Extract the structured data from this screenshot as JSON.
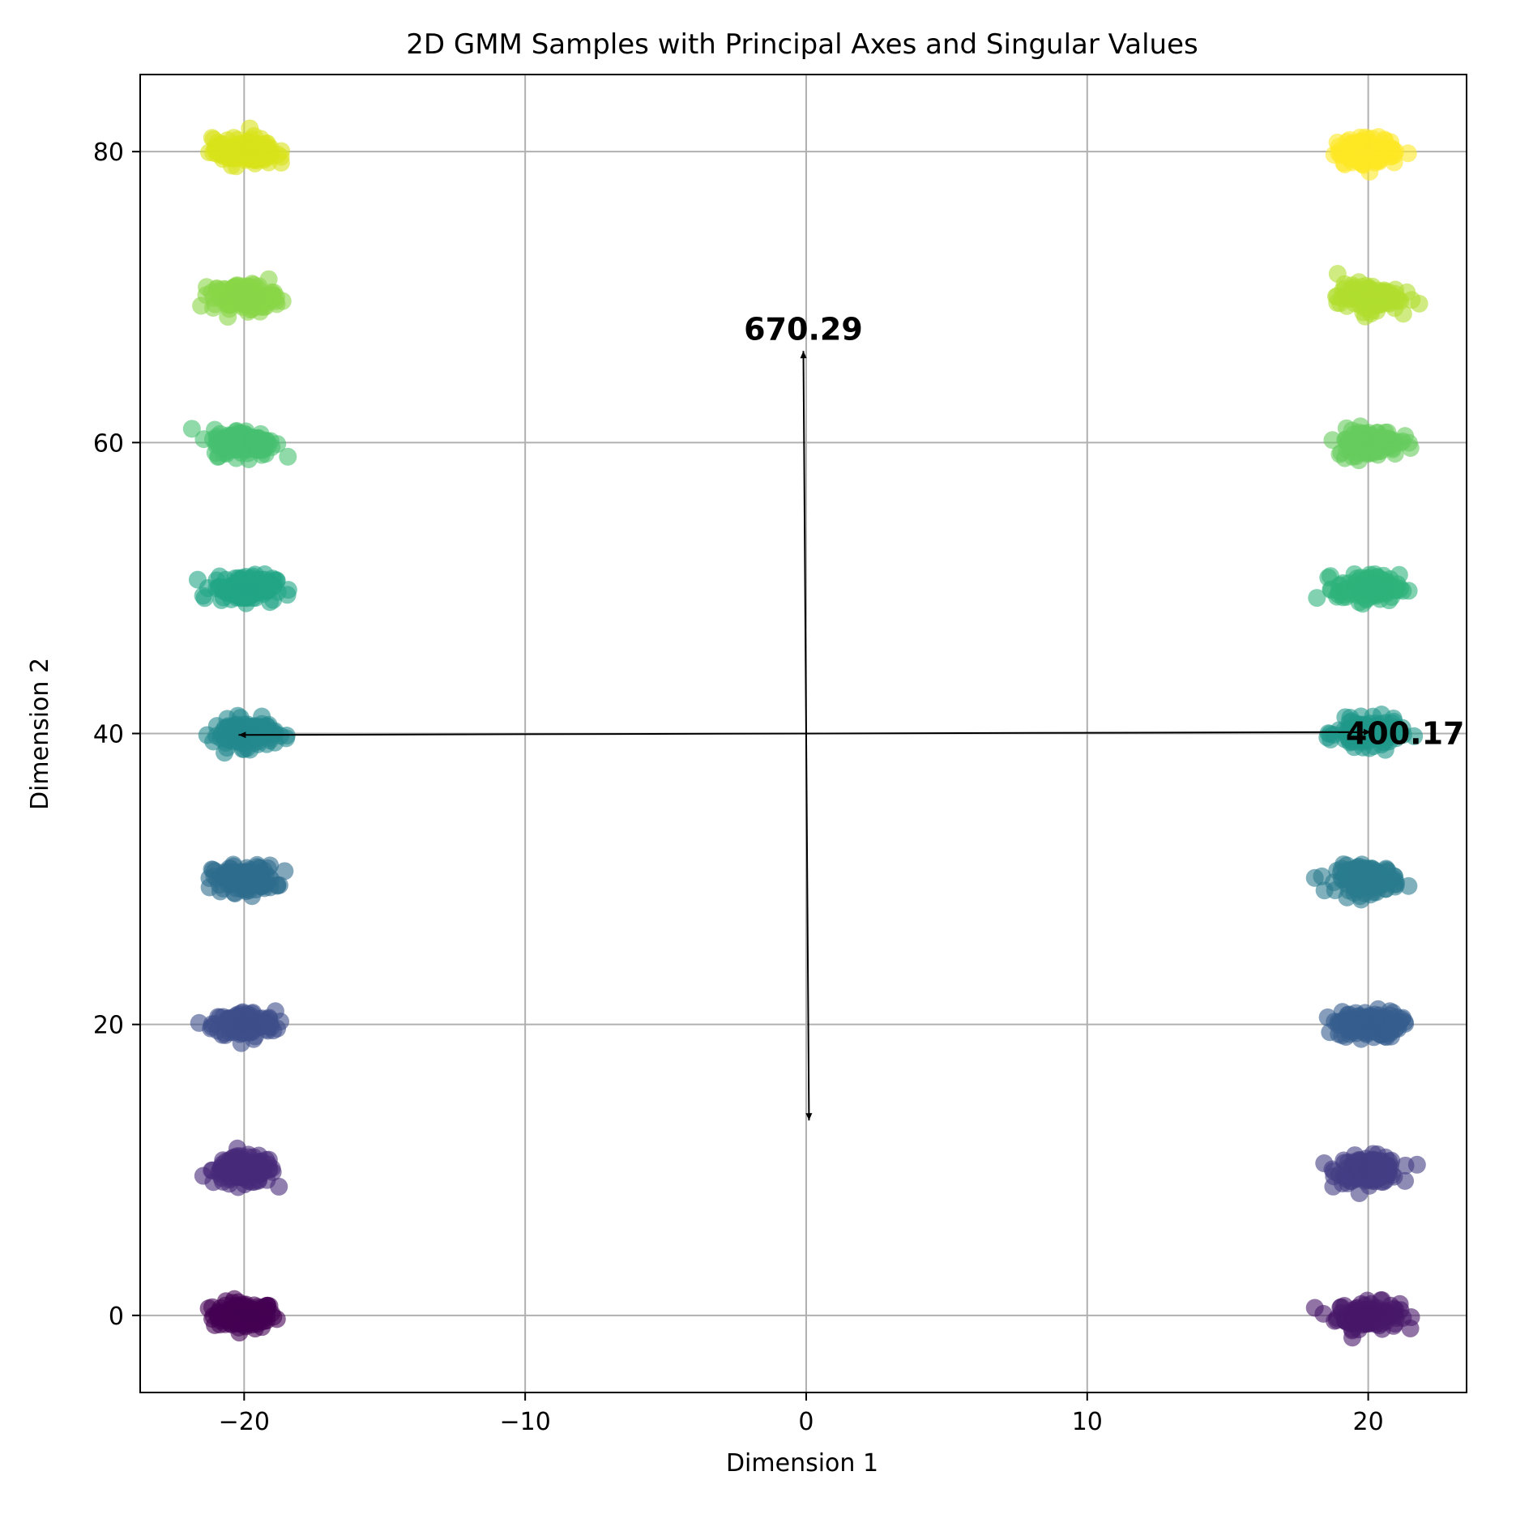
{
  "chart_data": {
    "type": "scatter",
    "title": "2D GMM Samples with Principal Axes and Singular Values",
    "xlabel": "Dimension 1",
    "ylabel": "Dimension 2",
    "xlim": [
      -23.7,
      23.5
    ],
    "ylim": [
      -5.3,
      85.3
    ],
    "xticks": [
      -20,
      -10,
      0,
      10,
      20
    ],
    "xtick_labels": [
      "−20",
      "−10",
      "0",
      "10",
      "20"
    ],
    "yticks": [
      0,
      20,
      40,
      60,
      80
    ],
    "ytick_labels": [
      "0",
      "20",
      "40",
      "60",
      "80"
    ],
    "grid": true,
    "colormap": "viridis",
    "clusters": [
      {
        "x": -20,
        "y": 0,
        "color": "#440154"
      },
      {
        "x": 20,
        "y": 0,
        "color": "#481769"
      },
      {
        "x": -20,
        "y": 10,
        "color": "#472a7a"
      },
      {
        "x": 20,
        "y": 10,
        "color": "#433d84"
      },
      {
        "x": -20,
        "y": 20,
        "color": "#3d4e8a"
      },
      {
        "x": 20,
        "y": 20,
        "color": "#355e8d"
      },
      {
        "x": -20,
        "y": 30,
        "color": "#2e6d8e"
      },
      {
        "x": 20,
        "y": 30,
        "color": "#297b8e"
      },
      {
        "x": -20,
        "y": 40,
        "color": "#23898e"
      },
      {
        "x": 20,
        "y": 40,
        "color": "#1f978b"
      },
      {
        "x": -20,
        "y": 50,
        "color": "#21a585"
      },
      {
        "x": 20,
        "y": 50,
        "color": "#2eb37c"
      },
      {
        "x": -20,
        "y": 60,
        "color": "#46c06f"
      },
      {
        "x": 20,
        "y": 60,
        "color": "#65cb5e"
      },
      {
        "x": -20,
        "y": 70,
        "color": "#89d548"
      },
      {
        "x": 20,
        "y": 70,
        "color": "#b0dd2f"
      },
      {
        "x": -20,
        "y": 80,
        "color": "#d8e219"
      },
      {
        "x": 20,
        "y": 80,
        "color": "#fde725"
      }
    ],
    "principal_axes": [
      {
        "label": "670.29",
        "from": [
          0.1,
          13.4
        ],
        "to": [
          -0.1,
          66.3
        ],
        "label_at": [
          -0.1,
          67.8
        ]
      },
      {
        "label": "400.17",
        "from": [
          -20.2,
          39.9
        ],
        "to": [
          20.1,
          40.1
        ],
        "label_at": [
          19.2,
          40.0
        ]
      }
    ]
  }
}
